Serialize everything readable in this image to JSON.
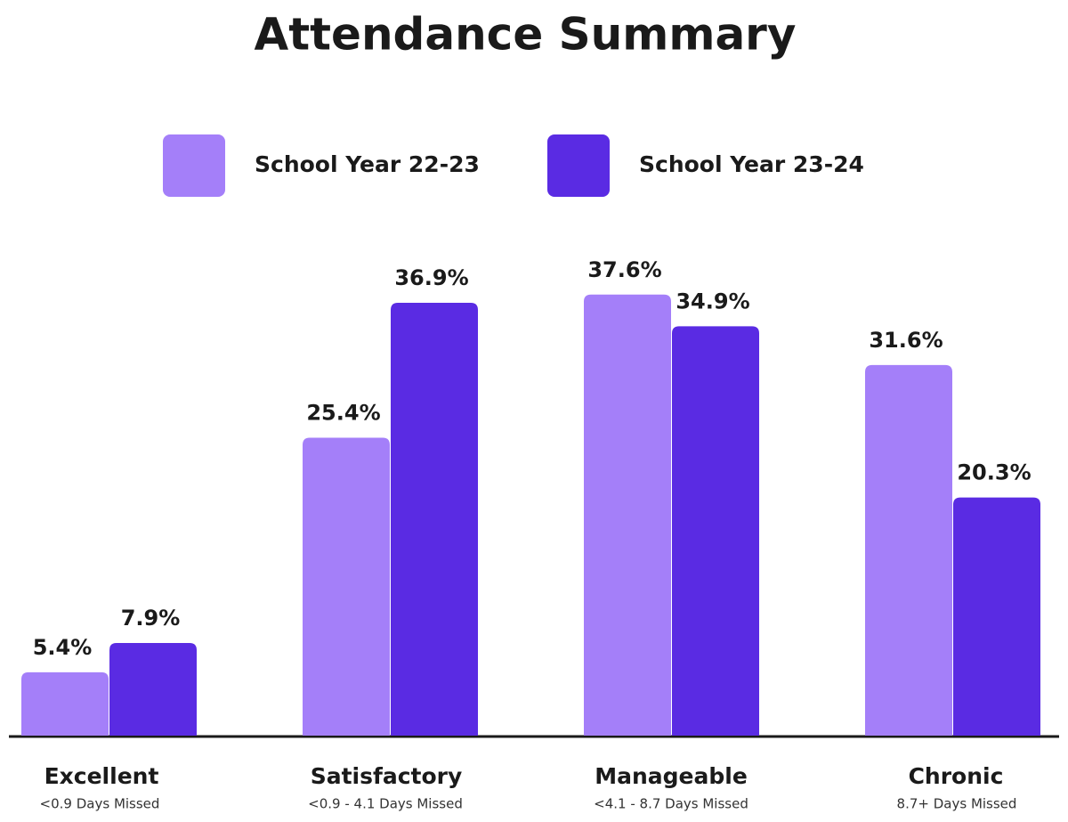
{
  "chart_data": {
    "type": "bar",
    "title": "Attendance Summary",
    "categories": [
      "Excellent",
      "Satisfactory",
      "Manageable",
      "Chronic"
    ],
    "category_notes": [
      "<0.9 Days Missed",
      "<0.9 - 4.1 Days Missed",
      "<4.1 - 8.7 Days Missed",
      "8.7+ Days Missed"
    ],
    "series": [
      {
        "name": "School Year 22-23",
        "color": "#a47ff9",
        "values": [
          5.4,
          25.4,
          37.6,
          31.6
        ],
        "value_labels": [
          "5.4%",
          "25.4%",
          "37.6%",
          "31.6%"
        ]
      },
      {
        "name": "School Year 23-24",
        "color": "#5a2be3",
        "values": [
          7.9,
          36.9,
          34.9,
          20.3
        ],
        "value_labels": [
          "7.9%",
          "36.9%",
          "34.9%",
          "20.3%"
        ]
      }
    ]
  }
}
